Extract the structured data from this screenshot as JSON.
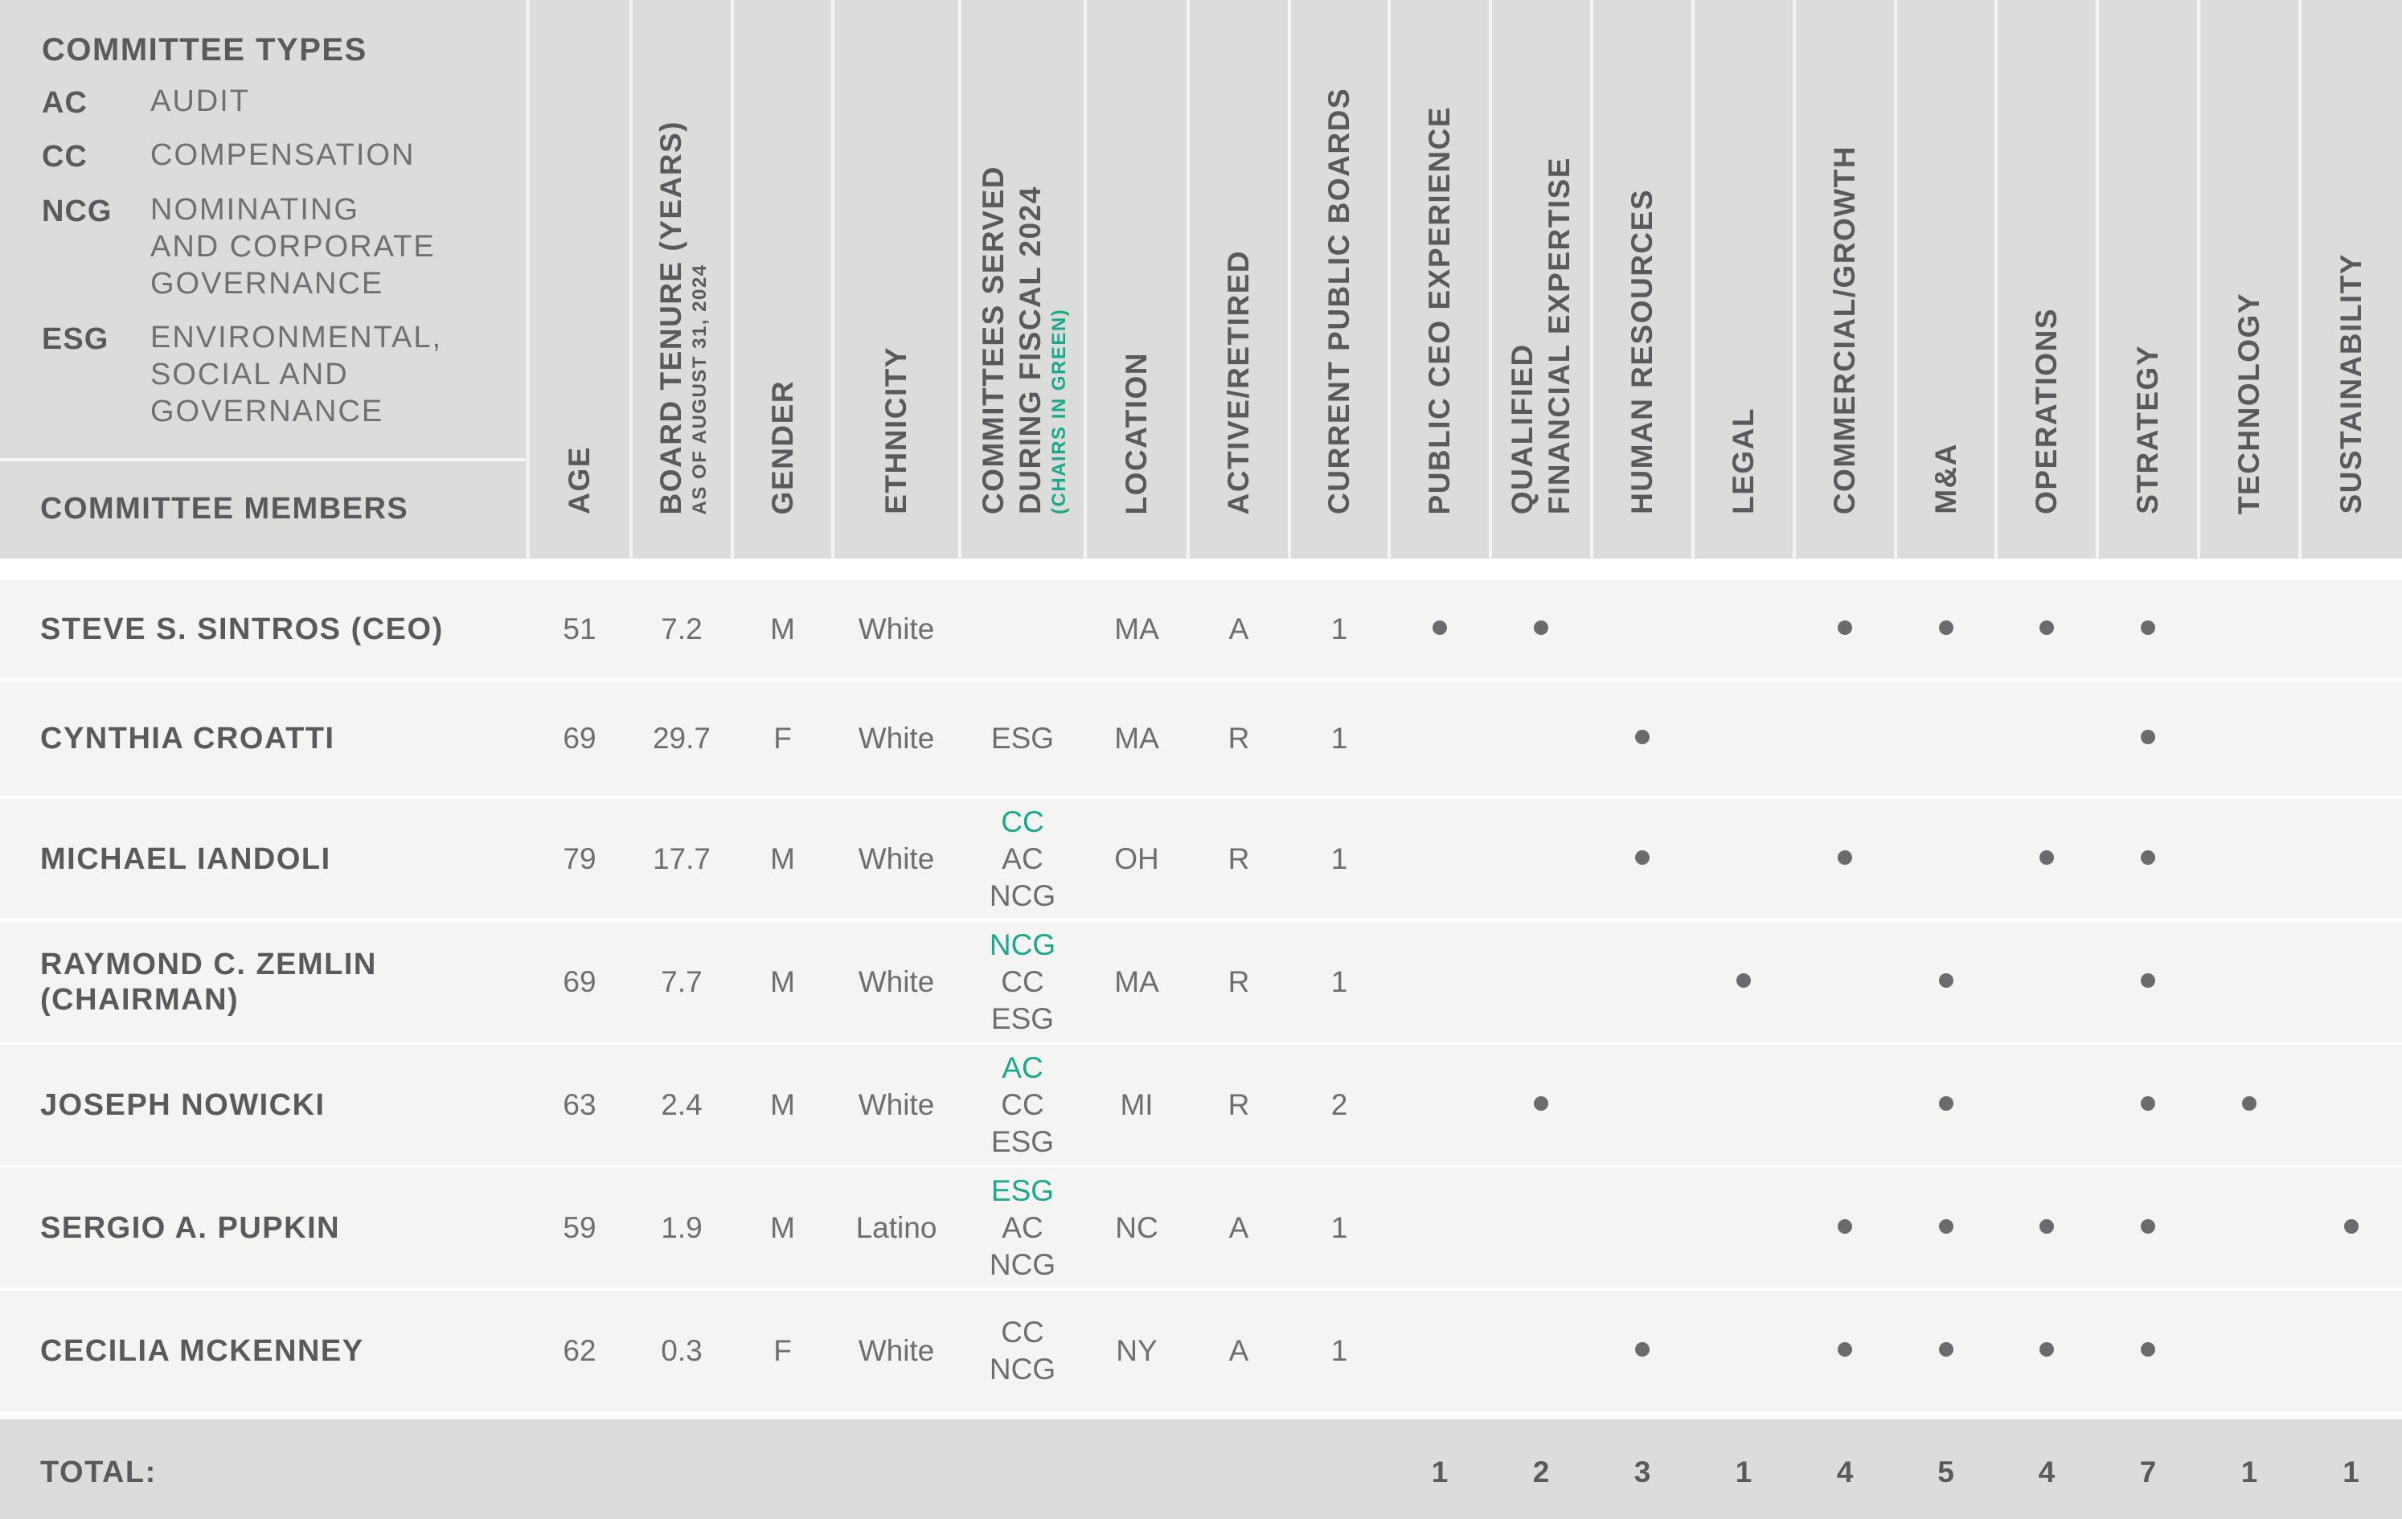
{
  "legend": {
    "title": "COMMITTEE TYPES",
    "items": [
      {
        "abbr": "AC",
        "lines": [
          "AUDIT"
        ]
      },
      {
        "abbr": "CC",
        "lines": [
          "COMPENSATION"
        ]
      },
      {
        "abbr": "NCG",
        "lines": [
          "NOMINATING",
          "AND CORPORATE",
          "GOVERNANCE"
        ]
      },
      {
        "abbr": "ESG",
        "lines": [
          "ENVIRONMENTAL,",
          "SOCIAL AND",
          "GOVERNANCE"
        ]
      }
    ],
    "members_label": "COMMITTEE MEMBERS"
  },
  "columns": [
    {
      "key": "age",
      "lines": [
        "AGE"
      ]
    },
    {
      "key": "tenure",
      "lines": [
        "BOARD TENURE (YEARS)"
      ],
      "sub": "AS OF AUGUST 31, 2024"
    },
    {
      "key": "gender",
      "lines": [
        "GENDER"
      ]
    },
    {
      "key": "ethnicity",
      "lines": [
        "ETHNICITY"
      ]
    },
    {
      "key": "committees",
      "lines": [
        "COMMITTEES SERVED",
        "DURING FISCAL 2024"
      ],
      "sub": "(CHAIRS IN GREEN)",
      "sub_green": true
    },
    {
      "key": "location",
      "lines": [
        "LOCATION"
      ]
    },
    {
      "key": "status",
      "lines": [
        "ACTIVE/RETIRED"
      ]
    },
    {
      "key": "boards",
      "lines": [
        "CURRENT PUBLIC BOARDS"
      ]
    },
    {
      "key": "ceo",
      "lines": [
        "PUBLIC CEO EXPERIENCE"
      ]
    },
    {
      "key": "financial",
      "lines": [
        "QUALIFIED",
        "FINANCIAL EXPERTISE"
      ]
    },
    {
      "key": "hr",
      "lines": [
        "HUMAN RESOURCES"
      ]
    },
    {
      "key": "legal",
      "lines": [
        "LEGAL"
      ]
    },
    {
      "key": "commercial",
      "lines": [
        "COMMERCIAL/GROWTH"
      ]
    },
    {
      "key": "ma",
      "lines": [
        "M&A"
      ]
    },
    {
      "key": "operations",
      "lines": [
        "OPERATIONS"
      ]
    },
    {
      "key": "strategy",
      "lines": [
        "STRATEGY"
      ]
    },
    {
      "key": "technology",
      "lines": [
        "TECHNOLOGY"
      ]
    },
    {
      "key": "sustainability",
      "lines": [
        "SUSTAINABILITY"
      ]
    }
  ],
  "members": [
    {
      "name": [
        "STEVE S. SINTROS (CEO)"
      ],
      "age": "51",
      "tenure": "7.2",
      "gender": "M",
      "ethnicity": "White",
      "committees": [],
      "location": "MA",
      "status": "A",
      "boards": "1",
      "skills": [
        "ceo",
        "financial",
        "commercial",
        "ma",
        "operations",
        "strategy"
      ]
    },
    {
      "name": [
        "CYNTHIA CROATTI"
      ],
      "age": "69",
      "tenure": "29.7",
      "gender": "F",
      "ethnicity": "White",
      "committees": [
        {
          "code": "ESG",
          "chair": false
        }
      ],
      "location": "MA",
      "status": "R",
      "boards": "1",
      "skills": [
        "hr",
        "strategy"
      ]
    },
    {
      "name": [
        "MICHAEL IANDOLI"
      ],
      "age": "79",
      "tenure": "17.7",
      "gender": "M",
      "ethnicity": "White",
      "committees": [
        {
          "code": "CC",
          "chair": true
        },
        {
          "code": "AC",
          "chair": false
        },
        {
          "code": "NCG",
          "chair": false
        }
      ],
      "location": "OH",
      "status": "R",
      "boards": "1",
      "skills": [
        "hr",
        "commercial",
        "operations",
        "strategy"
      ]
    },
    {
      "name": [
        "RAYMOND C. ZEMLIN",
        "(CHAIRMAN)"
      ],
      "age": "69",
      "tenure": "7.7",
      "gender": "M",
      "ethnicity": "White",
      "committees": [
        {
          "code": "NCG",
          "chair": true
        },
        {
          "code": "CC",
          "chair": false
        },
        {
          "code": "ESG",
          "chair": false
        }
      ],
      "location": "MA",
      "status": "R",
      "boards": "1",
      "skills": [
        "legal",
        "ma",
        "strategy"
      ]
    },
    {
      "name": [
        "JOSEPH NOWICKI"
      ],
      "age": "63",
      "tenure": "2.4",
      "gender": "M",
      "ethnicity": "White",
      "committees": [
        {
          "code": "AC",
          "chair": true
        },
        {
          "code": "CC",
          "chair": false
        },
        {
          "code": "ESG",
          "chair": false
        }
      ],
      "location": "MI",
      "status": "R",
      "boards": "2",
      "skills": [
        "financial",
        "ma",
        "strategy",
        "technology"
      ]
    },
    {
      "name": [
        "SERGIO A. PUPKIN"
      ],
      "age": "59",
      "tenure": "1.9",
      "gender": "M",
      "ethnicity": "Latino",
      "committees": [
        {
          "code": "ESG",
          "chair": true
        },
        {
          "code": "AC",
          "chair": false
        },
        {
          "code": "NCG",
          "chair": false
        }
      ],
      "location": "NC",
      "status": "A",
      "boards": "1",
      "skills": [
        "commercial",
        "ma",
        "operations",
        "strategy",
        "sustainability"
      ]
    },
    {
      "name": [
        "CECILIA MCKENNEY"
      ],
      "age": "62",
      "tenure": "0.3",
      "gender": "F",
      "ethnicity": "White",
      "committees": [
        {
          "code": "CC",
          "chair": false
        },
        {
          "code": "NCG",
          "chair": false
        }
      ],
      "location": "NY",
      "status": "A",
      "boards": "1",
      "skills": [
        "hr",
        "commercial",
        "ma",
        "operations",
        "strategy"
      ]
    }
  ],
  "totals": {
    "label": "TOTAL:",
    "values": {
      "ceo": "1",
      "financial": "2",
      "hr": "3",
      "legal": "1",
      "commercial": "4",
      "ma": "5",
      "operations": "4",
      "strategy": "7",
      "technology": "1",
      "sustainability": "1"
    }
  },
  "colors": {
    "header_bg": "#dcdcda",
    "row_bg": "#f4f4f2",
    "chair_green": "#1ba98d",
    "text": "#5a5a5c"
  }
}
